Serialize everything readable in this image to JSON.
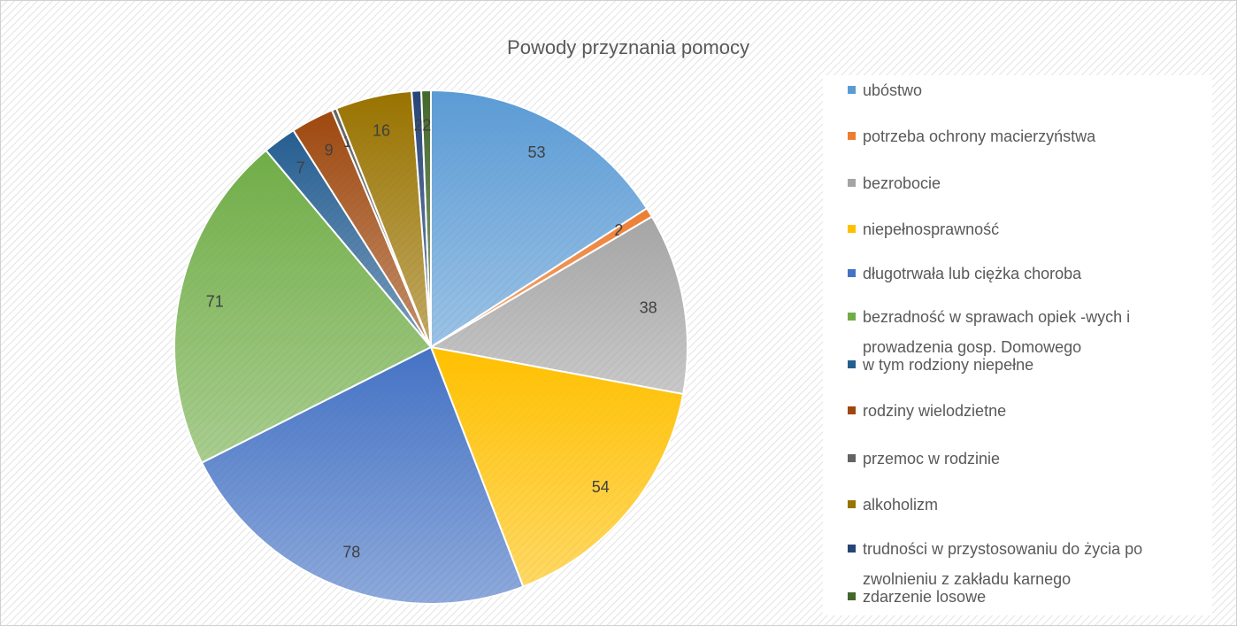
{
  "chart_data": {
    "type": "pie",
    "title": "Powody przyznania pomocy",
    "categories": [
      "ubóstwo",
      "potrzeba ochrony macierzyństwa",
      "bezrobocie",
      "niepełnosprawność",
      "długotrwała lub ciężka choroba",
      "bezradność w sprawach opiek -wych i prowadzenia gosp. Domowego",
      "w tym rodziony niepełne",
      "rodziny wielodzietne",
      "przemoc w rodzinie",
      "alkoholizm",
      "trudności w przystosowaniu do życia po zwolnieniu z zakładu karnego",
      "zdarzenie losowe"
    ],
    "values": [
      53,
      2,
      38,
      54,
      78,
      71,
      7,
      9,
      1,
      16,
      2,
      2
    ],
    "colors": [
      "#5b9bd5",
      "#ed7d31",
      "#a5a5a5",
      "#ffc000",
      "#4472c4",
      "#70ad47",
      "#255e91",
      "#9e480e",
      "#636363",
      "#997300",
      "#264478",
      "#43682b"
    ],
    "legend": "right"
  }
}
